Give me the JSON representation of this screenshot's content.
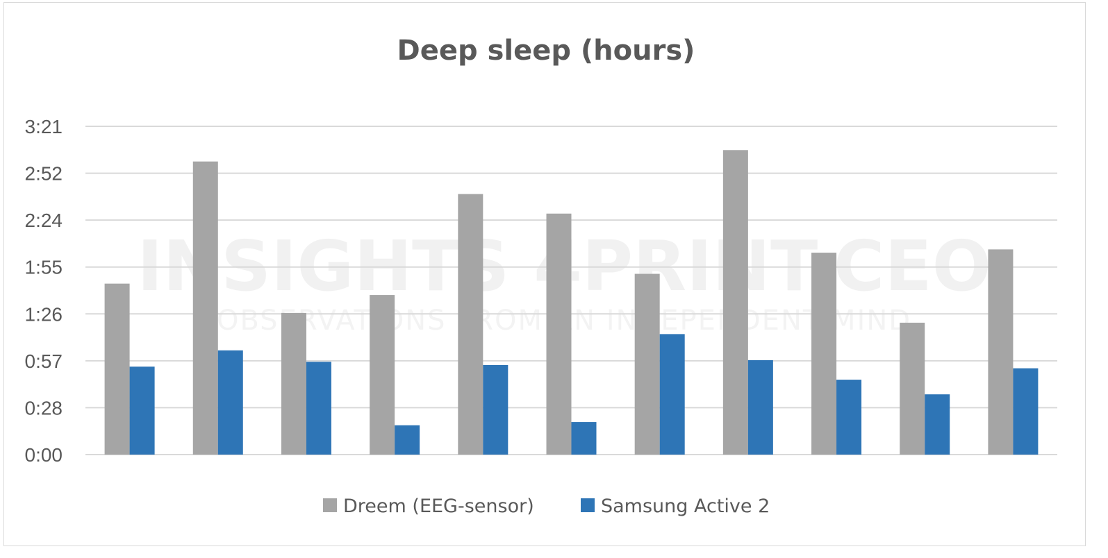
{
  "watermark": {
    "main": "INSIGHTS 4PRINT.CEO",
    "sub": "OBSERVATIONS FROM AN INDEPENDENT MIND"
  },
  "chart_data": {
    "type": "bar",
    "title": "Deep sleep (hours)",
    "xlabel": "",
    "ylabel": "",
    "y_unit": "minutes",
    "ylim": [
      0,
      201.6
    ],
    "yticks": [
      0,
      28.8,
      57.6,
      86.4,
      115.2,
      144,
      172.8,
      201.6
    ],
    "ytick_labels": [
      "0:00",
      "0:28",
      "0:57",
      "1:26",
      "1:55",
      "2:24",
      "2:52",
      "3:21"
    ],
    "grid": true,
    "legend": "bottom",
    "categories": [
      "",
      "",
      "",
      "",
      "",
      "",
      "",
      "",
      "",
      "",
      ""
    ],
    "series": [
      {
        "name": "Dreem (EEG-sensor)",
        "color": "#a5a5a5",
        "values": [
          105,
          180,
          87,
          98,
          160,
          148,
          111,
          187,
          124,
          81,
          126
        ]
      },
      {
        "name": "Samsung Active 2",
        "color": "#2e75b6",
        "values": [
          54,
          64,
          57,
          18,
          55,
          20,
          74,
          58,
          46,
          37,
          53
        ]
      }
    ]
  }
}
